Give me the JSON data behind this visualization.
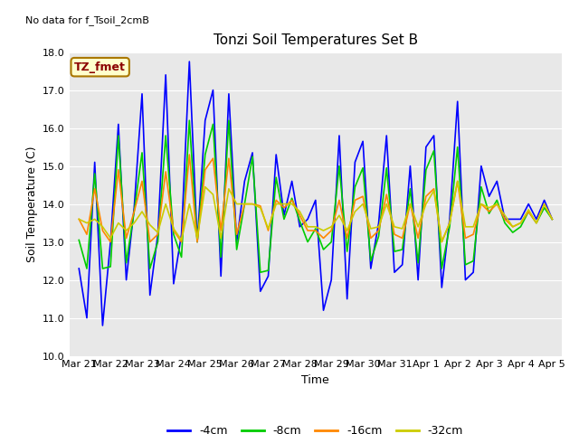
{
  "title": "Tonzi Soil Temperatures Set B",
  "xlabel": "Time",
  "ylabel": "Soil Temperature (C)",
  "no_data_text": "No data for f_Tsoil_2cmB",
  "legend_label_text": "TZ_fmet",
  "ylim": [
    10.0,
    18.0
  ],
  "yticks": [
    10.0,
    11.0,
    12.0,
    13.0,
    14.0,
    15.0,
    16.0,
    17.0,
    18.0
  ],
  "xtick_labels": [
    "Mar 21",
    "Mar 22",
    "Mar 23",
    "Mar 24",
    "Mar 25",
    "Mar 26",
    "Mar 27",
    "Mar 28",
    "Mar 29",
    "Mar 30",
    "Mar 31",
    "Apr 1",
    "Apr 2",
    "Apr 3",
    "Apr 4",
    "Apr 5"
  ],
  "colors": {
    "4cm": "#0000ff",
    "8cm": "#00cc00",
    "16cm": "#ff8800",
    "32cm": "#cccc00"
  },
  "legend_labels": [
    "-4cm",
    "-8cm",
    "-16cm",
    "-32cm"
  ],
  "background_color": "#e8e8e8",
  "title_fontsize": 11,
  "axis_fontsize": 9,
  "tick_fontsize": 8,
  "line_width": 1.2,
  "x_4cm": [
    0,
    0.25,
    0.5,
    0.75,
    1.0,
    1.25,
    1.5,
    1.75,
    2.0,
    2.25,
    2.5,
    2.75,
    3.0,
    3.25,
    3.5,
    3.75,
    4.0,
    4.25,
    4.5,
    4.75,
    5.0,
    5.25,
    5.5,
    5.75,
    6.0,
    6.25,
    6.5,
    6.75,
    7.0,
    7.25,
    7.5,
    7.75,
    8.0,
    8.25,
    8.5,
    8.75,
    9.0,
    9.25,
    9.5,
    9.75,
    10.0,
    10.25,
    10.5,
    10.75,
    11.0,
    11.25,
    11.5,
    11.75,
    12.0,
    12.25,
    12.5,
    12.75,
    13.0,
    13.25,
    13.5,
    13.75,
    14.0,
    14.25,
    14.5,
    14.75,
    15.0
  ],
  "y_4cm": [
    12.3,
    11.0,
    15.1,
    10.8,
    13.0,
    16.1,
    12.0,
    13.9,
    16.9,
    11.6,
    13.2,
    17.4,
    11.9,
    13.2,
    17.75,
    13.0,
    16.2,
    17.0,
    12.1,
    16.9,
    13.0,
    14.6,
    15.35,
    11.7,
    12.1,
    15.3,
    13.7,
    14.6,
    13.4,
    13.6,
    14.1,
    11.2,
    12.0,
    15.8,
    11.5,
    15.1,
    15.65,
    12.3,
    13.5,
    15.8,
    12.2,
    12.4,
    15.0,
    12.0,
    15.5,
    15.8,
    11.8,
    13.6,
    16.7,
    12.0,
    12.2,
    15.0,
    14.2,
    14.6,
    13.6,
    13.6,
    13.6,
    14.0,
    13.6,
    14.1,
    13.6
  ],
  "x_8cm": [
    0,
    0.25,
    0.5,
    0.75,
    1.0,
    1.25,
    1.5,
    1.75,
    2.0,
    2.25,
    2.5,
    2.75,
    3.0,
    3.25,
    3.5,
    3.75,
    4.0,
    4.25,
    4.5,
    4.75,
    5.0,
    5.25,
    5.5,
    5.75,
    6.0,
    6.25,
    6.5,
    6.75,
    7.0,
    7.25,
    7.5,
    7.75,
    8.0,
    8.25,
    8.5,
    8.75,
    9.0,
    9.25,
    9.5,
    9.75,
    10.0,
    10.25,
    10.5,
    10.75,
    11.0,
    11.25,
    11.5,
    11.75,
    12.0,
    12.25,
    12.5,
    12.75,
    13.0,
    13.25,
    13.5,
    13.75,
    14.0,
    14.25,
    14.5,
    14.75,
    15.0
  ],
  "y_8cm": [
    13.05,
    12.3,
    14.8,
    12.3,
    12.35,
    15.8,
    12.45,
    13.8,
    15.35,
    12.3,
    13.0,
    15.8,
    13.2,
    12.6,
    16.2,
    13.0,
    15.3,
    16.1,
    12.6,
    16.2,
    12.8,
    14.0,
    15.25,
    12.2,
    12.25,
    14.7,
    13.6,
    14.15,
    13.55,
    13.0,
    13.35,
    12.8,
    13.0,
    15.0,
    12.75,
    14.45,
    14.95,
    12.5,
    13.15,
    14.95,
    12.75,
    12.8,
    14.4,
    12.45,
    14.9,
    15.4,
    12.3,
    13.4,
    15.5,
    12.4,
    12.5,
    14.45,
    13.75,
    14.1,
    13.5,
    13.25,
    13.4,
    13.8,
    13.5,
    13.9,
    13.6
  ],
  "x_16cm": [
    0,
    0.25,
    0.5,
    0.75,
    1.0,
    1.25,
    1.5,
    1.75,
    2.0,
    2.25,
    2.5,
    2.75,
    3.0,
    3.25,
    3.5,
    3.75,
    4.0,
    4.25,
    4.5,
    4.75,
    5.0,
    5.25,
    5.5,
    5.75,
    6.0,
    6.25,
    6.5,
    6.75,
    7.0,
    7.25,
    7.5,
    7.75,
    8.0,
    8.25,
    8.5,
    8.75,
    9.0,
    9.25,
    9.5,
    9.75,
    10.0,
    10.25,
    10.5,
    10.75,
    11.0,
    11.25,
    11.5,
    11.75,
    12.0,
    12.25,
    12.5,
    12.75,
    13.0,
    13.25,
    13.5,
    13.75,
    14.0,
    14.25,
    14.5,
    14.75,
    15.0
  ],
  "y_16cm": [
    13.6,
    13.2,
    14.4,
    13.3,
    13.0,
    14.9,
    13.1,
    13.8,
    14.6,
    13.0,
    13.2,
    14.85,
    13.3,
    13.0,
    15.3,
    13.0,
    14.9,
    15.2,
    13.3,
    15.2,
    13.2,
    14.0,
    14.0,
    13.95,
    13.3,
    14.1,
    13.9,
    14.1,
    13.7,
    13.3,
    13.3,
    13.1,
    13.3,
    14.1,
    13.1,
    14.1,
    14.2,
    13.1,
    13.3,
    14.25,
    13.2,
    13.1,
    14.0,
    13.1,
    14.2,
    14.4,
    13.0,
    13.5,
    14.6,
    13.1,
    13.2,
    14.0,
    13.8,
    14.0,
    13.6,
    13.4,
    13.5,
    13.8,
    13.5,
    14.0,
    13.6
  ],
  "x_32cm": [
    0,
    0.25,
    0.5,
    0.75,
    1.0,
    1.25,
    1.5,
    1.75,
    2.0,
    2.25,
    2.5,
    2.75,
    3.0,
    3.25,
    3.5,
    3.75,
    4.0,
    4.25,
    4.5,
    4.75,
    5.0,
    5.25,
    5.5,
    5.75,
    6.0,
    6.25,
    6.5,
    6.75,
    7.0,
    7.25,
    7.5,
    7.75,
    8.0,
    8.25,
    8.5,
    8.75,
    9.0,
    9.25,
    9.5,
    9.75,
    10.0,
    10.25,
    10.5,
    10.75,
    11.0,
    11.25,
    11.5,
    11.75,
    12.0,
    12.25,
    12.5,
    12.75,
    13.0,
    13.25,
    13.5,
    13.75,
    14.0,
    14.25,
    14.5,
    14.75,
    15.0
  ],
  "y_32cm": [
    13.6,
    13.5,
    13.6,
    13.4,
    13.1,
    13.5,
    13.3,
    13.5,
    13.8,
    13.45,
    13.25,
    14.0,
    13.35,
    13.05,
    14.0,
    13.1,
    14.45,
    14.25,
    13.1,
    14.4,
    14.0,
    14.0,
    14.0,
    13.9,
    13.35,
    14.0,
    14.0,
    14.0,
    13.8,
    13.4,
    13.4,
    13.3,
    13.4,
    13.7,
    13.3,
    13.8,
    14.0,
    13.35,
    13.4,
    14.0,
    13.4,
    13.35,
    14.0,
    13.4,
    14.0,
    14.35,
    13.0,
    13.5,
    14.6,
    13.4,
    13.4,
    14.0,
    13.9,
    14.0,
    13.7,
    13.4,
    13.5,
    13.85,
    13.5,
    14.0,
    13.6
  ]
}
